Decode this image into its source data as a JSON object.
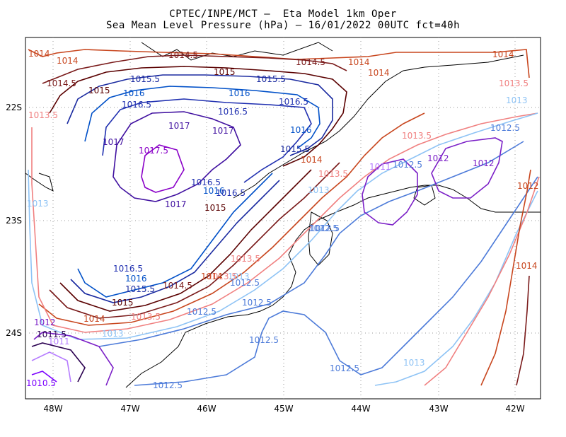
{
  "header": {
    "title_line1": "CPTEC/INPE/MCT –  Eta Model 1km Oper",
    "title_line2": "Sea Mean Level Pressure (hPa) – 16/01/2022 00UTC fct=40h"
  },
  "map": {
    "lon_labels": [
      "48W",
      "47W",
      "46W",
      "45W",
      "44W",
      "43W",
      "42W"
    ],
    "lat_labels": [
      "22S",
      "23S",
      "24S"
    ],
    "grid": "dotted",
    "colors": {
      "1010.5": "#7b00ff",
      "1011": "#b57bff",
      "1011.5": "#2a0050",
      "1012": "#7b1fc7",
      "1012.5": "#4d7bd9",
      "1013": "#8ec3f5",
      "1013.5": "#f08080",
      "1014": "#c8461e",
      "1014.5": "#7a1a1a",
      "1015": "#5a0000",
      "1015.5": "#1a2aa0",
      "1016": "#0050c8",
      "1016.5": "#2030b0",
      "1017": "#4010a0",
      "1017.5": "#8a00c8"
    },
    "contour_labels": [
      "1014",
      "1014",
      "1014.5",
      "1014.5",
      "1014",
      "1014",
      "1014",
      "1013.5",
      "1015",
      "1015",
      "1015.5",
      "1015.5",
      "1016",
      "1016",
      "1016.5",
      "1016.5",
      "1016.5",
      "1013.5",
      "1017",
      "1017",
      "1017",
      "1016",
      "1017.5",
      "1015.5",
      "1013",
      "1013.5",
      "1014",
      "1013.5",
      "1012.5",
      "1012",
      "1011",
      "1012.5",
      "1012",
      "1012",
      "1012.5",
      "1013",
      "1016.5",
      "1016",
      "1016.5",
      "1017",
      "1015",
      "1013",
      "1012.5",
      "1014",
      "1013.5",
      "1016.5",
      "1016",
      "1015.5",
      "1014.5",
      "1013",
      "1013.5",
      "1012.5",
      "1015",
      "1013.5",
      "1014",
      "1012.5",
      "1013",
      "1012.5",
      "1012",
      "1011.5",
      "1011",
      "1012.5",
      "1012.5",
      "1010.5",
      "1012.5",
      "1013",
      "1014",
      "1014.5"
    ]
  }
}
